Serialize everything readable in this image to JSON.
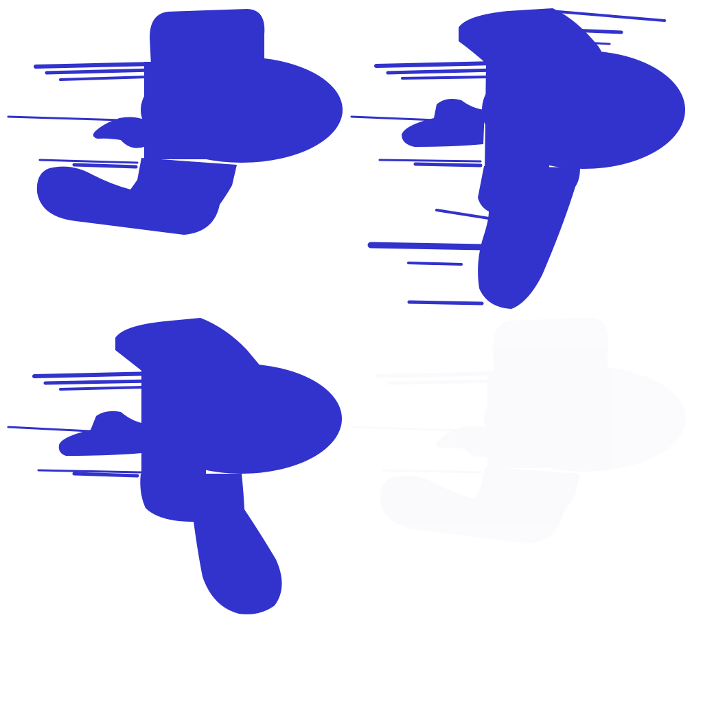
{
  "sprite_sheet": {
    "background": "#ffffff",
    "frames": [
      {
        "name": "frame-1",
        "color": "#3232cc",
        "opacity": 1
      },
      {
        "name": "frame-2",
        "color": "#3232cc",
        "opacity": 1
      },
      {
        "name": "frame-3",
        "color": "#3232cc",
        "opacity": 1
      },
      {
        "name": "frame-4",
        "color": "#3232cc",
        "opacity": 0.02
      }
    ]
  }
}
